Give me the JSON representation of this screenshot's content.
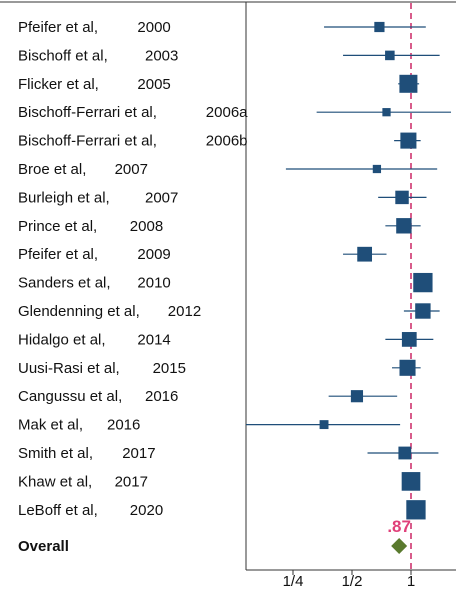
{
  "chart_data": {
    "type": "forest",
    "xscale": "log2",
    "xlim": [
      0.125,
      1.6
    ],
    "xticks": [
      {
        "value": 0.25,
        "label": "1/4"
      },
      {
        "value": 0.5,
        "label": "1/2"
      },
      {
        "value": 1,
        "label": "1"
      }
    ],
    "reference_line": 1,
    "colors": {
      "marker": "#1f4e79",
      "line": "#1f4e79",
      "reference": "#c8185a",
      "overall": "#5a7a2e",
      "overall_label": "#e0407a"
    },
    "studies": [
      {
        "author": "Pfeifer et al,",
        "year": "2000",
        "estimate": 0.69,
        "ci": [
          0.36,
          1.19
        ],
        "weight": 0.4
      },
      {
        "author": "Bischoff et al,",
        "year": "2003",
        "estimate": 0.78,
        "ci": [
          0.45,
          1.4
        ],
        "weight": 0.35
      },
      {
        "author": "Flicker et al,",
        "year": "2005",
        "estimate": 0.97,
        "ci": [
          0.86,
          1.1
        ],
        "weight": 1.0
      },
      {
        "author": "Bischoff-Ferrari et al,",
        "year": "2006a",
        "estimate": 0.75,
        "ci": [
          0.33,
          1.6
        ],
        "weight": 0.25
      },
      {
        "author": "Bischoff-Ferrari et al,",
        "year": "2006b",
        "estimate": 0.97,
        "ci": [
          0.82,
          1.12
        ],
        "weight": 0.85
      },
      {
        "author": "Broe et al,",
        "year": "2007",
        "estimate": 0.67,
        "ci": [
          0.23,
          1.36
        ],
        "weight": 0.25
      },
      {
        "author": "Burleigh et al,",
        "year": "2007",
        "estimate": 0.9,
        "ci": [
          0.68,
          1.2
        ],
        "weight": 0.65
      },
      {
        "author": "Prince et al,",
        "year": "2008",
        "estimate": 0.92,
        "ci": [
          0.74,
          1.12
        ],
        "weight": 0.8
      },
      {
        "author": "Pfeifer et al,",
        "year": "2009",
        "estimate": 0.58,
        "ci": [
          0.45,
          0.75
        ],
        "weight": 0.75
      },
      {
        "author": "Sanders et al,",
        "year": "2010",
        "estimate": 1.15,
        "ci": [
          1.05,
          1.26
        ],
        "weight": 1.1
      },
      {
        "author": "Glendenning et al,",
        "year": "2012",
        "estimate": 1.15,
        "ci": [
          0.92,
          1.4
        ],
        "weight": 0.8
      },
      {
        "author": "Hidalgo et al,",
        "year": "2014",
        "estimate": 0.98,
        "ci": [
          0.74,
          1.3
        ],
        "weight": 0.75
      },
      {
        "author": "Uusi-Rasi et al,",
        "year": "2015",
        "estimate": 0.96,
        "ci": [
          0.8,
          1.12
        ],
        "weight": 0.85
      },
      {
        "author": "Cangussu et al,",
        "year": "2016",
        "estimate": 0.53,
        "ci": [
          0.38,
          0.85
        ],
        "weight": 0.55
      },
      {
        "author": "Mak et al,",
        "year": "2016",
        "estimate": 0.36,
        "ci": [
          0.13,
          0.88
        ],
        "weight": 0.3
      },
      {
        "author": "Smith et al,",
        "year": "2017",
        "estimate": 0.93,
        "ci": [
          0.6,
          1.38
        ],
        "weight": 0.6
      },
      {
        "author": "Khaw et al,",
        "year": "2017",
        "estimate": 1.0,
        "ci": [
          0.93,
          1.07
        ],
        "weight": 1.05
      },
      {
        "author": "LeBoff et al,",
        "year": "2020",
        "estimate": 1.06,
        "ci": [
          0.97,
          1.14
        ],
        "weight": 1.1
      }
    ],
    "overall": {
      "label": "Overall",
      "estimate": 0.87,
      "estimate_label": ".87"
    }
  }
}
